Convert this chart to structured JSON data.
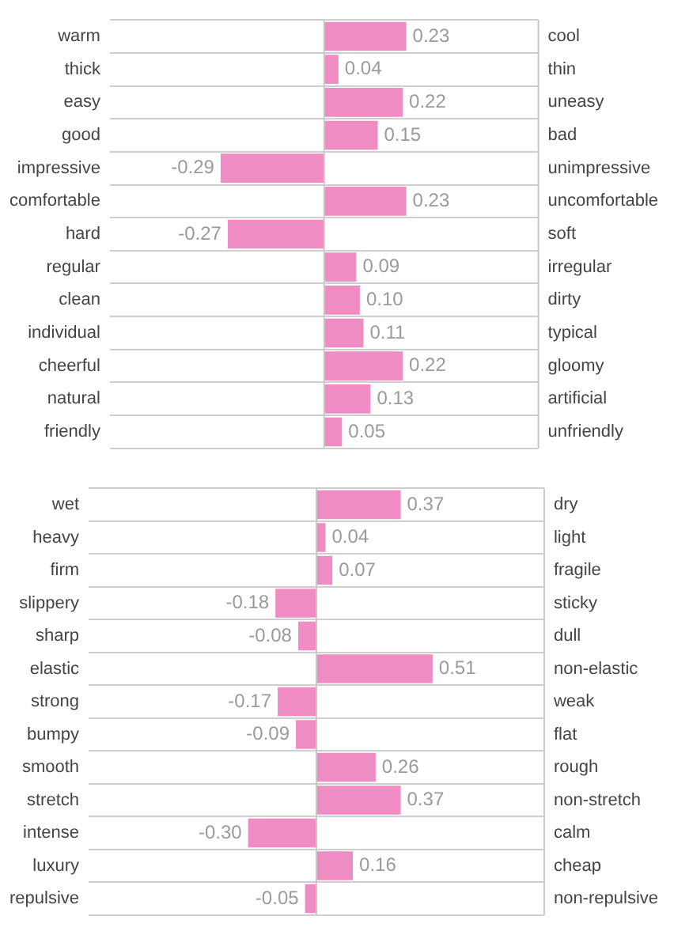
{
  "chart_data": [
    {
      "type": "bar",
      "orientation": "horizontal",
      "categories": [
        "warm",
        "thick",
        "easy",
        "good",
        "impressive",
        "comfortable",
        "hard",
        "regular",
        "clean",
        "individual",
        "cheerful",
        "natural",
        "friendly"
      ],
      "y2_categories": [
        "cool",
        "thin",
        "uneasy",
        "bad",
        "unimpressive",
        "uncomfortable",
        "soft",
        "irregular",
        "dirty",
        "typical",
        "gloomy",
        "artificial",
        "unfriendly"
      ],
      "values": [
        0.23,
        0.04,
        0.22,
        0.15,
        -0.29,
        0.23,
        -0.27,
        0.09,
        0.1,
        0.11,
        0.22,
        0.13,
        0.05
      ],
      "value_labels": [
        "0.23",
        "0.04",
        "0.22",
        "0.15",
        "-0.29",
        "0.23",
        "-0.27",
        "0.09",
        "0.10",
        "0.11",
        "0.22",
        "0.13",
        "0.05"
      ],
      "color": "#f08cc4",
      "grid": "y",
      "tick_labels": "y"
    },
    {
      "type": "bar",
      "orientation": "horizontal",
      "categories": [
        "wet",
        "heavy",
        "firm",
        "slippery",
        "sharp",
        "elastic",
        "strong",
        "bumpy",
        "smooth",
        "stretch",
        "intense",
        "luxury",
        "repulsive"
      ],
      "y2_categories": [
        "dry",
        "light",
        "fragile",
        "sticky",
        "dull",
        "non-elastic",
        "weak",
        "flat",
        "rough",
        "non-stretch",
        "calm",
        "cheap",
        "non-repulsive"
      ],
      "values": [
        0.37,
        0.04,
        0.07,
        -0.18,
        -0.08,
        0.51,
        -0.17,
        -0.09,
        0.26,
        0.37,
        -0.3,
        0.16,
        -0.05
      ],
      "value_labels": [
        "0.37",
        "0.04",
        "0.07",
        "-0.18",
        "-0.08",
        "0.51",
        "-0.17",
        "-0.09",
        "0.26",
        "0.37",
        "-0.30",
        "0.16",
        "-0.05"
      ],
      "color": "#f08cc4",
      "grid": "y",
      "tick_labels": "y"
    }
  ]
}
